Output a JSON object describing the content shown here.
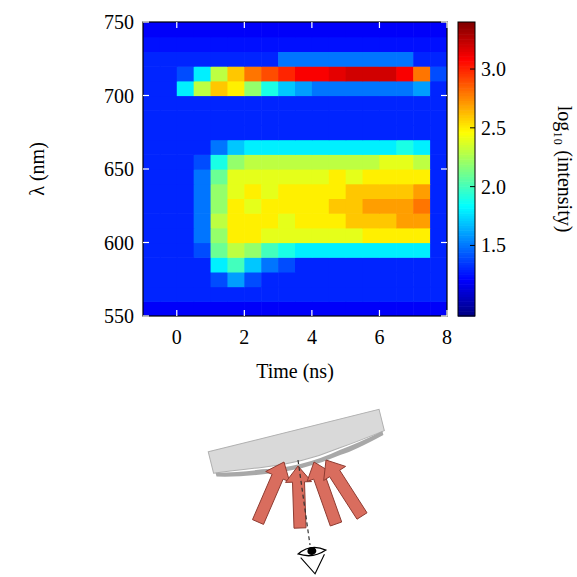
{
  "chart_data": {
    "type": "heatmap",
    "x_label": "Time (ns)",
    "y_label": "λ (nm)",
    "x": [
      -0.75,
      -0.25,
      0.25,
      0.75,
      1.25,
      1.75,
      2.25,
      2.75,
      3.25,
      3.75,
      4.25,
      4.75,
      5.25,
      5.75,
      6.25,
      6.75,
      7.25,
      7.75
    ],
    "y": [
      555,
      565,
      575,
      585,
      595,
      605,
      615,
      625,
      635,
      645,
      655,
      665,
      675,
      685,
      695,
      705,
      715,
      725,
      735,
      745
    ],
    "values": [
      [
        1.2,
        1.2,
        1.2,
        1.2,
        1.2,
        1.2,
        1.2,
        1.2,
        1.2,
        1.2,
        1.2,
        1.2,
        1.2,
        1.2,
        1.2,
        1.2,
        1.2,
        1.2
      ],
      [
        1.3,
        1.3,
        1.3,
        1.3,
        1.3,
        1.3,
        1.3,
        1.3,
        1.3,
        1.3,
        1.3,
        1.3,
        1.3,
        1.3,
        1.3,
        1.3,
        1.3,
        1.3
      ],
      [
        1.3,
        1.3,
        1.3,
        1.3,
        1.4,
        1.6,
        1.4,
        1.3,
        1.3,
        1.3,
        1.3,
        1.3,
        1.3,
        1.3,
        1.3,
        1.3,
        1.3,
        1.3
      ],
      [
        1.3,
        1.3,
        1.3,
        1.3,
        1.8,
        2.0,
        1.7,
        1.5,
        1.4,
        1.3,
        1.3,
        1.3,
        1.3,
        1.3,
        1.3,
        1.3,
        1.3,
        1.3
      ],
      [
        1.3,
        1.3,
        1.3,
        1.4,
        2.1,
        2.3,
        2.2,
        2.0,
        1.9,
        1.8,
        1.8,
        1.8,
        1.8,
        1.8,
        1.8,
        1.8,
        1.8,
        1.3
      ],
      [
        1.3,
        1.3,
        1.3,
        1.5,
        2.2,
        2.5,
        2.5,
        2.4,
        2.4,
        2.4,
        2.4,
        2.4,
        2.4,
        2.5,
        2.5,
        2.5,
        2.5,
        1.3
      ],
      [
        1.3,
        1.3,
        1.3,
        1.5,
        2.3,
        2.5,
        2.5,
        2.5,
        2.4,
        2.5,
        2.5,
        2.5,
        2.6,
        2.6,
        2.6,
        2.7,
        2.7,
        1.3
      ],
      [
        1.3,
        1.3,
        1.3,
        1.5,
        2.2,
        2.5,
        2.4,
        2.5,
        2.5,
        2.5,
        2.5,
        2.6,
        2.6,
        2.7,
        2.7,
        2.7,
        2.8,
        1.3
      ],
      [
        1.3,
        1.3,
        1.3,
        1.5,
        2.2,
        2.4,
        2.5,
        2.4,
        2.5,
        2.5,
        2.5,
        2.5,
        2.6,
        2.6,
        2.6,
        2.6,
        2.7,
        1.3
      ],
      [
        1.3,
        1.3,
        1.3,
        1.5,
        2.1,
        2.4,
        2.4,
        2.4,
        2.4,
        2.4,
        2.4,
        2.5,
        2.4,
        2.5,
        2.5,
        2.5,
        2.5,
        1.3
      ],
      [
        1.3,
        1.3,
        1.3,
        1.4,
        1.9,
        2.2,
        2.3,
        2.3,
        2.3,
        2.3,
        2.3,
        2.3,
        2.3,
        2.3,
        2.4,
        2.4,
        2.3,
        1.3
      ],
      [
        1.3,
        1.3,
        1.3,
        1.3,
        1.5,
        1.7,
        1.8,
        1.8,
        1.8,
        1.8,
        1.8,
        1.8,
        1.8,
        1.8,
        1.8,
        1.9,
        1.8,
        1.3
      ],
      [
        1.3,
        1.3,
        1.3,
        1.3,
        1.3,
        1.3,
        1.3,
        1.3,
        1.3,
        1.3,
        1.3,
        1.3,
        1.3,
        1.3,
        1.3,
        1.3,
        1.3,
        1.3
      ],
      [
        1.3,
        1.3,
        1.3,
        1.3,
        1.3,
        1.3,
        1.3,
        1.3,
        1.3,
        1.3,
        1.3,
        1.3,
        1.3,
        1.3,
        1.3,
        1.3,
        1.3,
        1.3
      ],
      [
        1.3,
        1.3,
        1.3,
        1.3,
        1.3,
        1.3,
        1.3,
        1.3,
        1.3,
        1.3,
        1.3,
        1.3,
        1.3,
        1.3,
        1.3,
        1.3,
        1.3,
        1.3
      ],
      [
        1.3,
        1.3,
        1.8,
        2.3,
        2.6,
        2.5,
        2.2,
        1.9,
        1.7,
        1.6,
        1.5,
        1.5,
        1.5,
        1.5,
        1.5,
        1.5,
        1.6,
        1.3
      ],
      [
        1.3,
        1.3,
        1.4,
        1.8,
        2.3,
        2.6,
        2.8,
        2.9,
        3.0,
        3.1,
        3.1,
        3.15,
        3.2,
        3.2,
        3.2,
        3.1,
        2.8,
        1.4
      ],
      [
        1.3,
        1.3,
        1.3,
        1.3,
        1.3,
        1.3,
        1.3,
        1.3,
        1.5,
        1.5,
        1.5,
        1.5,
        1.5,
        1.5,
        1.5,
        1.5,
        1.3,
        1.3
      ],
      [
        1.25,
        1.25,
        1.25,
        1.25,
        1.25,
        1.25,
        1.25,
        1.25,
        1.25,
        1.25,
        1.25,
        1.25,
        1.25,
        1.25,
        1.25,
        1.25,
        1.25,
        1.25
      ],
      [
        1.2,
        1.2,
        1.2,
        1.2,
        1.2,
        1.2,
        1.2,
        1.2,
        1.2,
        1.2,
        1.2,
        1.2,
        1.2,
        1.2,
        1.2,
        1.2,
        1.2,
        1.2
      ]
    ],
    "xlim": [
      -1,
      8
    ],
    "xticks": [
      0,
      2,
      4,
      6,
      8
    ],
    "ylim": [
      550,
      750
    ],
    "yticks": [
      550,
      600,
      650,
      700,
      750
    ],
    "colorbar": {
      "label": "log₁₀ (intensity)",
      "range": [
        0.9,
        3.4
      ],
      "ticks": [
        1.5,
        {
          "value": 2,
          "label": "2.0"
        },
        2.5,
        {
          "value": 3,
          "label": "3.0"
        }
      ]
    }
  }
}
